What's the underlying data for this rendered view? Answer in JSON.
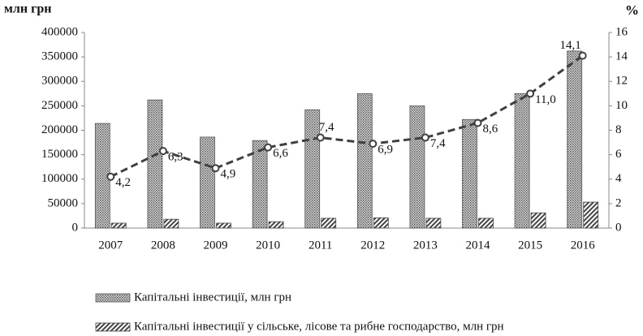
{
  "chart_data": {
    "type": "bar",
    "ylabel": "млн грн",
    "y2label": "%",
    "categories": [
      "2007",
      "2008",
      "2009",
      "2010",
      "2011",
      "2012",
      "2013",
      "2014",
      "2015",
      "2016"
    ],
    "series": [
      {
        "name": "Капітальні інвестиції, млн грн",
        "color": "#555555",
        "values": [
          214000,
          262000,
          186000,
          179000,
          242000,
          275000,
          250000,
          222000,
          275000,
          362000
        ]
      },
      {
        "name": "Капітальні інвестиції у сільське, лісове та рибне господарство, млн грн",
        "color": "#444444",
        "values": [
          10000,
          18000,
          10000,
          13000,
          20000,
          21000,
          20000,
          20000,
          31000,
          53000
        ]
      },
      {
        "type": "line",
        "axis": "y2",
        "color": "#404040",
        "values": [
          4.2,
          6.3,
          4.9,
          6.6,
          7.4,
          6.9,
          7.4,
          8.6,
          11.0,
          14.1
        ],
        "value_labels": [
          "4,2",
          "6,3",
          "4,9",
          "6,6",
          "7,4",
          "6,9",
          "7,4",
          "8,6",
          "11,0",
          "14,1"
        ]
      }
    ],
    "ylim": [
      0,
      400000
    ],
    "yticks": [
      0,
      50000,
      100000,
      150000,
      200000,
      250000,
      300000,
      350000,
      400000
    ],
    "y2lim": [
      0,
      16
    ],
    "y2ticks": [
      0,
      2,
      4,
      6,
      8,
      10,
      12,
      14,
      16
    ],
    "grid": false
  }
}
